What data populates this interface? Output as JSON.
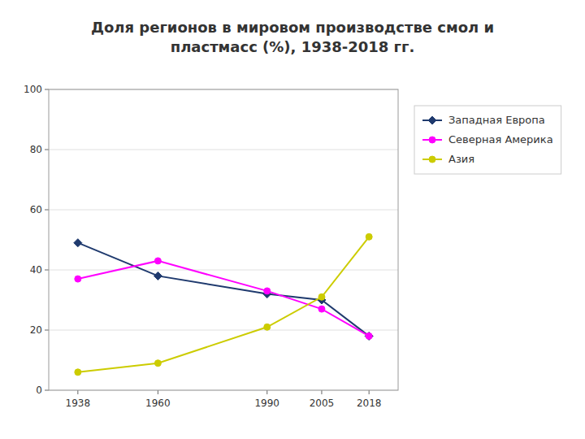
{
  "chart_data": {
    "type": "line",
    "title": "Доля регионов в мировом производстве смол и\nпластмасс (%), 1938-2018 гг.",
    "x": [
      1938,
      1960,
      1990,
      2005,
      2018
    ],
    "series": [
      {
        "name": "Западная Европа",
        "values": [
          49,
          38,
          32,
          30,
          18
        ],
        "color": "#1F3A6E",
        "marker": "diamond"
      },
      {
        "name": "Северная Америка",
        "values": [
          37,
          43,
          33,
          27,
          18
        ],
        "color": "#FF00FF",
        "marker": "circle"
      },
      {
        "name": "Азия",
        "values": [
          6,
          9,
          21,
          31,
          51
        ],
        "color": "#CCCC00",
        "marker": "circle"
      }
    ],
    "xlim": [
      1930,
      2026
    ],
    "xticks": [
      1938,
      1960,
      1990,
      2005,
      2018
    ],
    "ylim": [
      0,
      100
    ],
    "yticks": [
      0,
      20,
      40,
      60,
      80,
      100
    ],
    "grid": true,
    "legend": "right"
  }
}
